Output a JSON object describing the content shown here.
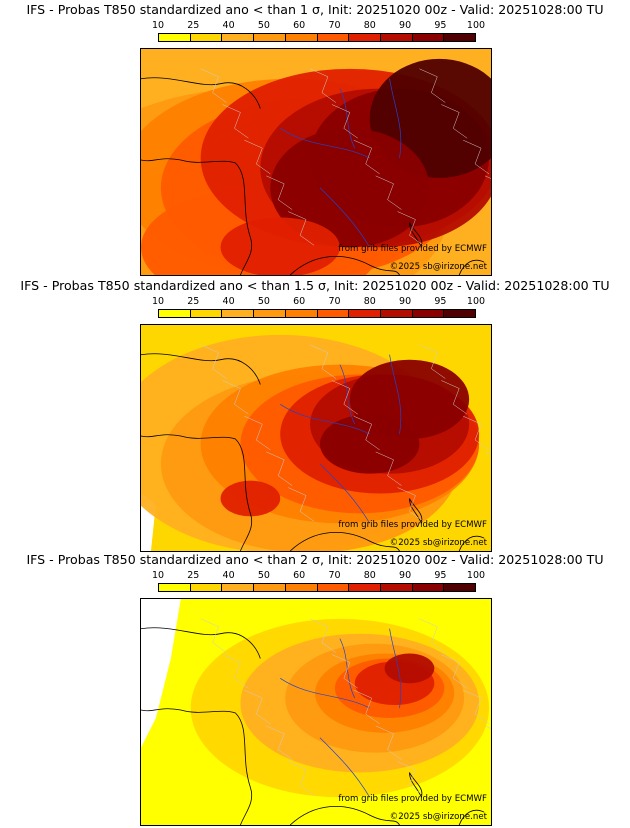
{
  "panels": [
    {
      "title": "IFS - Probas T850  standardized ano < than 1 σ, Init: 20251020 00z - Valid: 20251028:00 TU",
      "sigma": "1",
      "intensity": "strong"
    },
    {
      "title": "IFS - Probas T850  standardized ano < than 1.5 σ, Init: 20251020 00z - Valid: 20251028:00 TU",
      "sigma": "1.5",
      "intensity": "medium"
    },
    {
      "title": "IFS - Probas T850  standardized ano < than 2 σ, Init: 20251020 00z - Valid: 20251028:00 TU",
      "sigma": "2",
      "intensity": "weak"
    }
  ],
  "colorbar": {
    "tick_labels": [
      "10",
      "25",
      "40",
      "50",
      "60",
      "70",
      "80",
      "90",
      "95",
      "100"
    ],
    "colors": [
      "#ffff00",
      "#ffd700",
      "#ffb020",
      "#ff9a10",
      "#ff8000",
      "#ff5a00",
      "#e02000",
      "#b40c00",
      "#8a0000",
      "#500000"
    ]
  },
  "credits": {
    "source": "from grib files provided by ECMWF",
    "copyright": "©2025 sb@irizone.net"
  },
  "colors": {
    "land_line": "#000000",
    "border_line": "#cccccc",
    "river_line": "#2244cc"
  }
}
